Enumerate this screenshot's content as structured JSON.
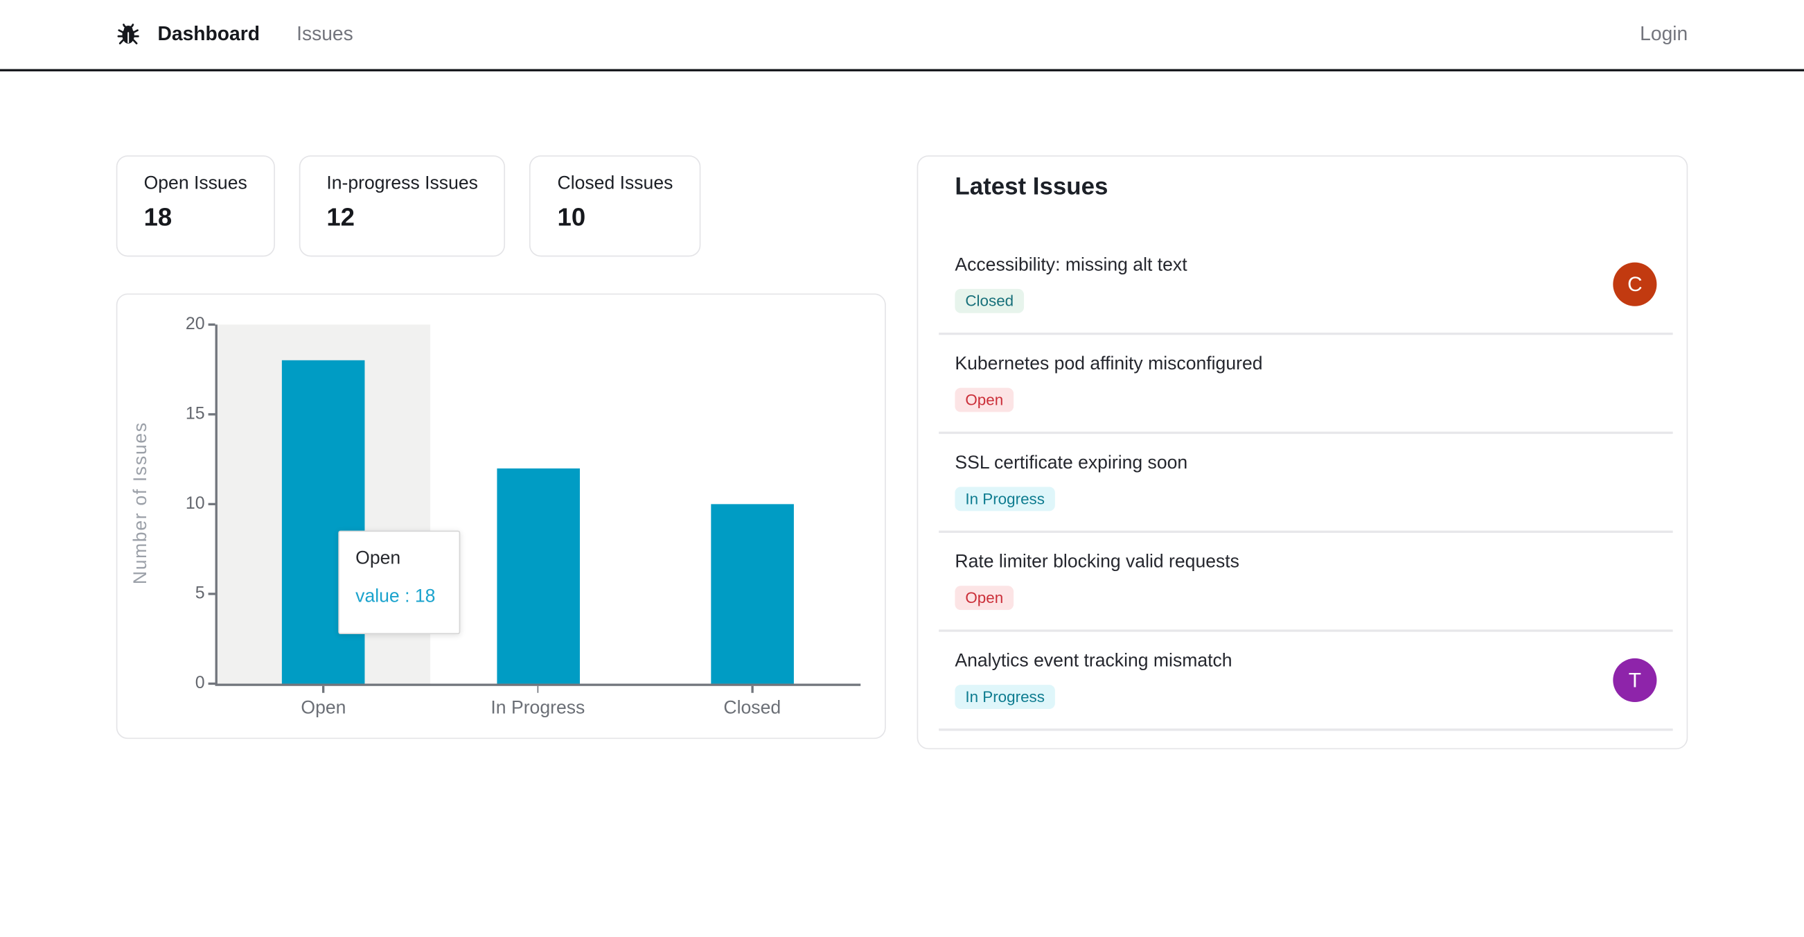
{
  "nav": {
    "brand_icon": "bug-icon",
    "items": [
      {
        "label": "Dashboard",
        "active": true
      },
      {
        "label": "Issues",
        "active": false
      }
    ],
    "login_label": "Login"
  },
  "stats": [
    {
      "label": "Open Issues",
      "value": "18"
    },
    {
      "label": "In-progress Issues",
      "value": "12"
    },
    {
      "label": "Closed Issues",
      "value": "10"
    }
  ],
  "chart_data": {
    "type": "bar",
    "categories": [
      "Open",
      "In Progress",
      "Closed"
    ],
    "values": [
      18,
      12,
      10
    ],
    "title": "",
    "xlabel": "",
    "ylabel": "Number of Issues",
    "ylim": [
      0,
      20
    ],
    "yticks": [
      0,
      5,
      10,
      15,
      20
    ],
    "grid": false,
    "legend": false,
    "bar_color": "#009cc4",
    "axis_color": "#71757c",
    "hover_band_color": "#f1f1f0",
    "hovered_category": "Open",
    "tooltip": {
      "title": "Open",
      "value_label": "value : 18",
      "value_color": "#1ba3cd"
    }
  },
  "latest_issues": {
    "title": "Latest Issues",
    "items": [
      {
        "title": "Accessibility: missing alt text",
        "status": "Closed",
        "avatar": "C",
        "avatar_color": "#c23a10"
      },
      {
        "title": "Kubernetes pod affinity misconfigured",
        "status": "Open"
      },
      {
        "title": "SSL certificate expiring soon",
        "status": "In Progress"
      },
      {
        "title": "Rate limiter blocking valid requests",
        "status": "Open"
      },
      {
        "title": "Analytics event tracking mismatch",
        "status": "In Progress",
        "avatar": "T",
        "avatar_color": "#8e24aa"
      }
    ],
    "status_colors": {
      "Open": {
        "bg": "#fce4e5",
        "text": "#cb2f39"
      },
      "In Progress": {
        "bg": "#dff6fa",
        "text": "#0e7c90"
      },
      "Closed": {
        "bg": "#e7f4ec",
        "text": "#17707a"
      }
    }
  }
}
